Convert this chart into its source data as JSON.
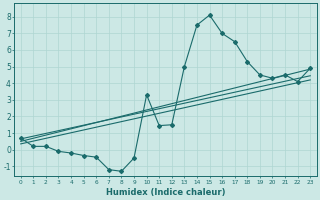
{
  "main_x": [
    0,
    1,
    2,
    3,
    4,
    5,
    6,
    7,
    8,
    9,
    10,
    11,
    12,
    13,
    14,
    15,
    16,
    17,
    18,
    19,
    20,
    21,
    22,
    23
  ],
  "main_y": [
    0.7,
    0.2,
    0.2,
    -0.1,
    -0.2,
    -0.35,
    -0.45,
    -1.2,
    -1.3,
    -0.5,
    3.3,
    1.45,
    1.5,
    5.0,
    7.5,
    8.1,
    7.0,
    6.5,
    5.3,
    4.5,
    4.3,
    4.5,
    4.1,
    4.9
  ],
  "line1_x": [
    0,
    23
  ],
  "line1_y": [
    0.65,
    4.45
  ],
  "line2_x": [
    0,
    23
  ],
  "line2_y": [
    0.5,
    4.85
  ],
  "line3_x": [
    0,
    23
  ],
  "line3_y": [
    0.35,
    4.2
  ],
  "xlim": [
    -0.5,
    23.5
  ],
  "ylim": [
    -1.6,
    8.8
  ],
  "xticks": [
    0,
    1,
    2,
    3,
    4,
    5,
    6,
    7,
    8,
    9,
    10,
    11,
    12,
    13,
    14,
    15,
    16,
    17,
    18,
    19,
    20,
    21,
    22,
    23
  ],
  "yticks": [
    -1,
    0,
    1,
    2,
    3,
    4,
    5,
    6,
    7,
    8
  ],
  "xlabel": "Humidex (Indice chaleur)",
  "color": "#1a6b6b",
  "bg_color": "#cce8e5",
  "grid_color": "#afd6d2"
}
